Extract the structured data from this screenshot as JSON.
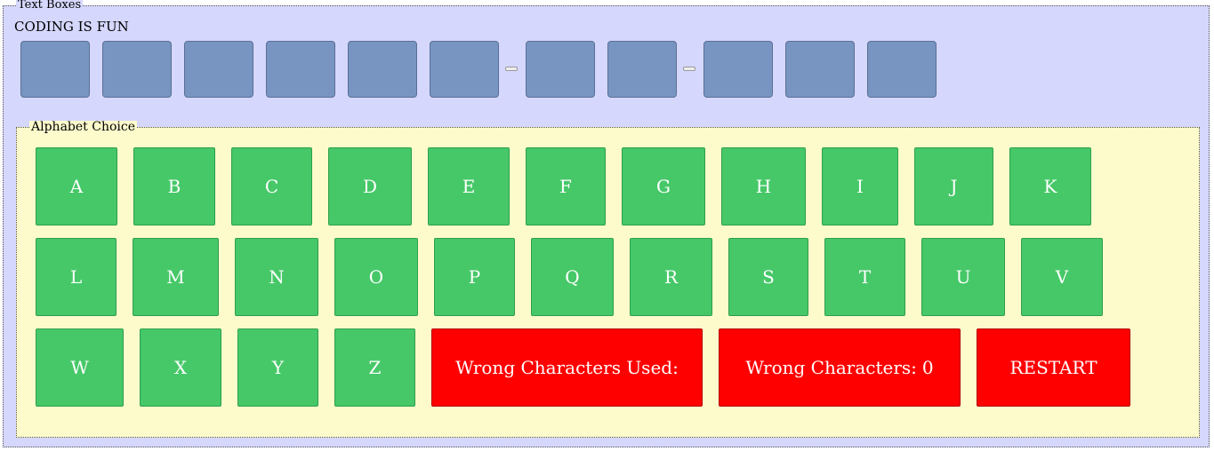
{
  "text_boxes": {
    "legend": "Text Boxes",
    "phrase": "CODING IS FUN",
    "letter_slot_count": 11,
    "dash_count": 2
  },
  "alphabet_choice": {
    "legend": "Alphabet Choice",
    "letters": [
      "A",
      "B",
      "C",
      "D",
      "E",
      "F",
      "G",
      "H",
      "I",
      "J",
      "K",
      "L",
      "M",
      "N",
      "O",
      "P",
      "Q",
      "R",
      "S",
      "T",
      "U",
      "V",
      "W",
      "X",
      "Y",
      "Z"
    ],
    "wrong_used_label": "Wrong Characters Used:",
    "wrong_count_label": "Wrong Characters:",
    "wrong_count_value": "0",
    "restart_label": "RESTART"
  },
  "colors": {
    "outer_background": "#d5d7fc",
    "inner_background": "#fdfbcc",
    "letter_box": "#7895c2",
    "key_green": "#46c868",
    "alert_red": "#ff0000"
  }
}
